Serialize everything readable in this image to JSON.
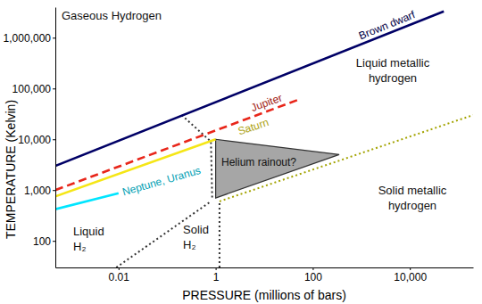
{
  "chart_data": {
    "type": "line",
    "log": true,
    "grid": false,
    "xlabel": "PRESSURE (millions of bars)",
    "ylabel": "TEMPERATURE (Kelvin)",
    "xlim": [
      0.0005,
      200000
    ],
    "ylim": [
      30,
      4000000
    ],
    "xticks": [
      0.01,
      1,
      100,
      {
        "value": 10000,
        "label": "10,000"
      }
    ],
    "yticks": [
      100,
      {
        "value": 1000,
        "label": "1,000"
      },
      {
        "value": 10000,
        "label": "10,000"
      },
      {
        "value": 100000,
        "label": "100,000"
      },
      {
        "value": 1000000,
        "label": "1,000,000"
      }
    ],
    "series": [
      {
        "name": "Helium rainout?",
        "type": "polygon",
        "color": "#a6a6a6",
        "line_style": "solid",
        "x": [
          1,
          350,
          1
        ],
        "values": [
          10000,
          5000,
          700
        ]
      },
      {
        "type": "line",
        "color": "#333333",
        "line_style": "dotted",
        "x": [
          0.2,
          0.8,
          0.85
        ],
        "values": [
          30000,
          9000,
          650
        ]
      },
      {
        "type": "line",
        "color": "#333333",
        "line_style": "dotted",
        "x": [
          0.009,
          0.8
        ],
        "values": [
          30,
          600
        ]
      },
      {
        "type": "line",
        "color": "#333333",
        "line_style": "dotted",
        "x": [
          1.2,
          1.2
        ],
        "values": [
          30,
          600
        ]
      },
      {
        "type": "line",
        "color": "#a3a300",
        "line_style": "dotted",
        "x": [
          1.2,
          200000
        ],
        "values": [
          600,
          30000
        ]
      },
      {
        "name": "Brown dwarf",
        "type": "line",
        "color": "#000066",
        "line_style": "solid",
        "x": [
          0.0005,
          50000
        ],
        "values": [
          3000,
          3300000
        ]
      },
      {
        "name": "Jupiter",
        "type": "line",
        "color": "#e8261a",
        "line_style": "dashed",
        "x": [
          0.0005,
          50
        ],
        "values": [
          1000,
          60000
        ]
      },
      {
        "name": "Saturn",
        "type": "line",
        "color": "#f5e616",
        "line_style": "solid",
        "x": [
          0.0005,
          1
        ],
        "values": [
          750,
          10000
        ]
      },
      {
        "name": "Neptune, Uranus",
        "type": "line",
        "color": "#00e5ff",
        "line_style": "solid",
        "x": [
          0.0005,
          0.01
        ],
        "values": [
          420,
          870
        ]
      }
    ],
    "annotations": [
      [
        "Gaseous Hydrogen"
      ],
      [
        "Liquid metallic",
        "hydrogen"
      ],
      [
        "Liquid",
        "H₂"
      ],
      [
        "Solid",
        "H₂"
      ],
      [
        "Solid metallic",
        "hydrogen"
      ]
    ]
  }
}
